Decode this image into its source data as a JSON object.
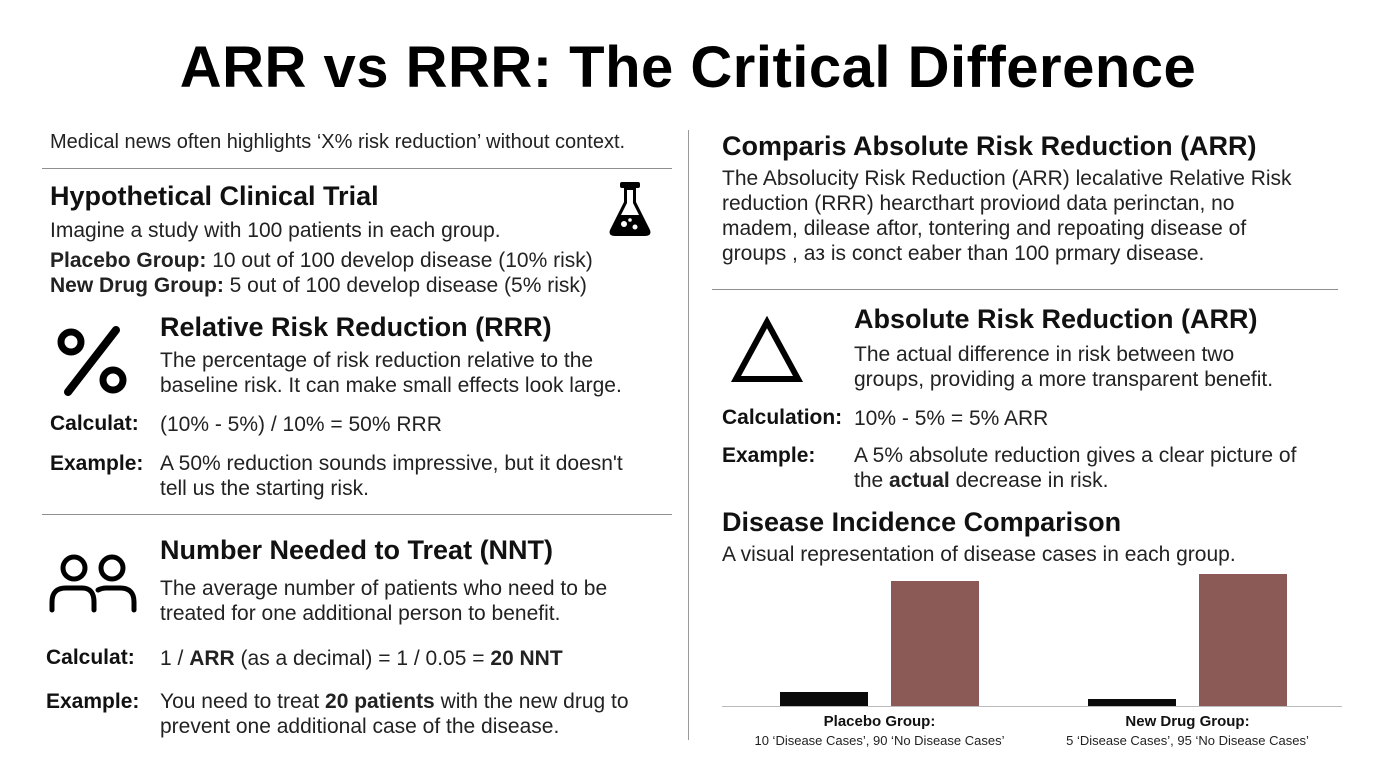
{
  "title": "ARR vs RRR: The Critical Difference",
  "left": {
    "intro": "Medical news often highlights ‘X% risk reduction’ without context.",
    "trial": {
      "heading": "Hypothetical Clinical Trial",
      "desc": "Imagine a study with 100 patients in each group.",
      "placebo_label": "Placebo Group:",
      "placebo_text": "10 out of 100 develop disease (10% risk)",
      "drug_label": "New Drug Group:",
      "drug_text": "5 out of 100 develop disease (5% risk)",
      "icon": "flask-icon"
    },
    "rrr": {
      "heading": "Relative Risk Reduction (RRR)",
      "desc1": "The percentage of risk reduction relative to the",
      "desc2": "baseline risk. It can make small effects look large.",
      "calc_label": "Calculat:",
      "calc_text": "(10% - 5%) / 10% = 50% RRR",
      "example_label": "Example:",
      "example1": "A 50% reduction sounds impressive, but it doesn't",
      "example2": "tell us the starting risk.",
      "icon": "percent-icon"
    },
    "nnt": {
      "heading": "Number Needed to Treat (NNT)",
      "desc1": "The average number of patients who need to be",
      "desc2": "treated for one additional person to benefit.",
      "calc_label": "Calculat:",
      "calc_a": "1 / ",
      "calc_b": "ARR",
      "calc_c": " (as a decimal) = 1 / 0.05 = ",
      "calc_d": "20 NNT",
      "example_label": "Example:",
      "example_a": "You need to treat ",
      "example_b": "20 patients",
      "example_c": " with the new drug to",
      "example2": "prevent one additional case of the disease.",
      "icon": "people-icon"
    }
  },
  "right": {
    "compare": {
      "heading": "Comparis Absolute Risk Reduction (ARR)",
      "l1": "The Absolucity Risk Reduction (ARR) lecalative Relative Risk",
      "l2": "reduction (RRR) hearcthart provioиd data perinctan, no",
      "l3": "madem, dilease aftor, tontering and repoating disease of",
      "l4": "groups , aᴈ is conct eaber than 100 prmary disease."
    },
    "arr": {
      "heading": "Absolute Risk Reduction (ARR)",
      "desc1": "The actual difference in risk between two",
      "desc2": "groups, providing a more transparent benefit.",
      "calc_label": "Calculation:",
      "calc_text": "10%  - 5% = 5% ARR",
      "example_label": "Example:",
      "example1": "A 5% absolute reduction gives a clear picture of",
      "example2_a": "the ",
      "example2_b": "actual",
      "example2_c": " decrease in risk.",
      "icon": "delta-icon"
    },
    "chart": {
      "heading": "Disease Incidence Comparison",
      "subtitle": "A visual representation of disease cases in each group."
    }
  },
  "chart_data": {
    "type": "bar",
    "title": "Disease Incidence Comparison",
    "categories": [
      "Placebo Group:",
      "New Drug Group:"
    ],
    "category_sublabels": [
      "10 ‘Disease Cases’, 90 ‘No Disease Cases’",
      "5 ‘Disease Cases’, 95 ‘No Disease Cases’"
    ],
    "series": [
      {
        "name": "Disease Cases",
        "values": [
          10,
          5
        ],
        "color": "#0a0a0a"
      },
      {
        "name": "No Disease Cases",
        "values": [
          90,
          95
        ],
        "color": "#8b5a56"
      }
    ],
    "ylim": [
      0,
      95
    ],
    "grid": false
  },
  "colors": {
    "disease_bar": "#0a0a0a",
    "no_disease_bar": "#8b5a56",
    "divider": "#9a9a9a"
  }
}
